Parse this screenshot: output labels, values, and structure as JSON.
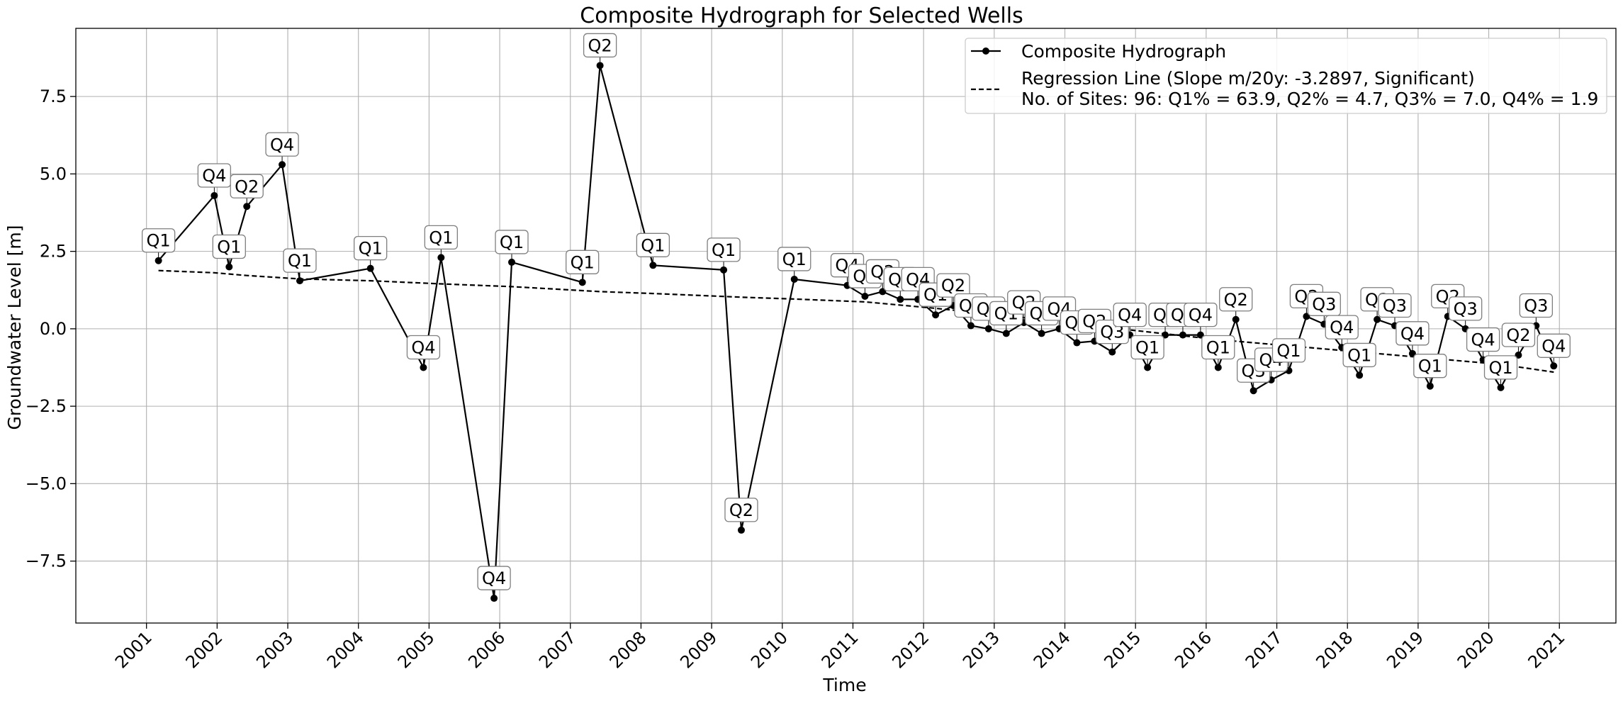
{
  "chart_data": {
    "type": "line",
    "title": "Composite Hydrograph for Selected Wells",
    "xlabel": "Time",
    "ylabel": "Groundwater Level [m]",
    "xlim": [
      2000.0,
      2021.8
    ],
    "ylim": [
      -9.5,
      9.7
    ],
    "grid": true,
    "legend_position": "top-right",
    "x_ticks": [
      "2001",
      "2002",
      "2003",
      "2004",
      "2005",
      "2006",
      "2007",
      "2008",
      "2009",
      "2010",
      "2011",
      "2012",
      "2013",
      "2014",
      "2015",
      "2016",
      "2017",
      "2018",
      "2019",
      "2020",
      "2021"
    ],
    "y_ticks": [
      {
        "value": 7.5,
        "label": "7.5"
      },
      {
        "value": 5.0,
        "label": "5.0"
      },
      {
        "value": 2.5,
        "label": "2.5"
      },
      {
        "value": 0.0,
        "label": "0.0"
      },
      {
        "value": -2.5,
        "label": "−2.5"
      },
      {
        "value": -5.0,
        "label": "−5.0"
      },
      {
        "value": -7.5,
        "label": "−7.5"
      }
    ],
    "series": [
      {
        "name": "Composite Hydrograph",
        "style": "solid-line-with-markers",
        "color": "#000000",
        "points": [
          {
            "x": 2001.17,
            "y": 2.2,
            "label": "Q1"
          },
          {
            "x": 2001.96,
            "y": 4.3,
            "label": "Q4"
          },
          {
            "x": 2002.17,
            "y": 2.0,
            "label": "Q1"
          },
          {
            "x": 2002.42,
            "y": 3.95,
            "label": "Q2"
          },
          {
            "x": 2002.92,
            "y": 5.3,
            "label": "Q4"
          },
          {
            "x": 2003.17,
            "y": 1.55,
            "label": "Q1"
          },
          {
            "x": 2004.17,
            "y": 1.95,
            "label": "Q1"
          },
          {
            "x": 2004.92,
            "y": -1.25,
            "label": "Q4"
          },
          {
            "x": 2005.17,
            "y": 2.3,
            "label": "Q1"
          },
          {
            "x": 2005.92,
            "y": -8.7,
            "label": "Q4"
          },
          {
            "x": 2006.17,
            "y": 2.15,
            "label": "Q1"
          },
          {
            "x": 2007.17,
            "y": 1.5,
            "label": "Q1"
          },
          {
            "x": 2007.42,
            "y": 8.5,
            "label": "Q2"
          },
          {
            "x": 2008.17,
            "y": 2.05,
            "label": "Q1"
          },
          {
            "x": 2009.17,
            "y": 1.9,
            "label": "Q1"
          },
          {
            "x": 2009.42,
            "y": -6.5,
            "label": "Q2"
          },
          {
            "x": 2010.17,
            "y": 1.6,
            "label": "Q1"
          },
          {
            "x": 2010.92,
            "y": 1.4,
            "label": "Q4"
          },
          {
            "x": 2011.17,
            "y": 1.05,
            "label": "Q1"
          },
          {
            "x": 2011.42,
            "y": 1.2,
            "label": "Q2"
          },
          {
            "x": 2011.67,
            "y": 0.95,
            "label": "Q3"
          },
          {
            "x": 2011.92,
            "y": 0.95,
            "label": "Q4"
          },
          {
            "x": 2012.17,
            "y": 0.45,
            "label": "Q1"
          },
          {
            "x": 2012.42,
            "y": 0.75,
            "label": "Q2"
          },
          {
            "x": 2012.67,
            "y": 0.1,
            "label": "Q3"
          },
          {
            "x": 2012.92,
            "y": 0.0,
            "label": "Q4"
          },
          {
            "x": 2013.17,
            "y": -0.15,
            "label": "Q1"
          },
          {
            "x": 2013.42,
            "y": 0.2,
            "label": "Q2"
          },
          {
            "x": 2013.67,
            "y": -0.15,
            "label": "Q3"
          },
          {
            "x": 2013.92,
            "y": 0.0,
            "label": "Q4"
          },
          {
            "x": 2014.17,
            "y": -0.45,
            "label": "Q1"
          },
          {
            "x": 2014.42,
            "y": -0.4,
            "label": "Q2"
          },
          {
            "x": 2014.67,
            "y": -0.75,
            "label": "Q3"
          },
          {
            "x": 2014.92,
            "y": -0.2,
            "label": "Q4"
          },
          {
            "x": 2015.17,
            "y": -1.25,
            "label": "Q1"
          },
          {
            "x": 2015.42,
            "y": -0.2,
            "label": "Q2"
          },
          {
            "x": 2015.67,
            "y": -0.2,
            "label": "Q3"
          },
          {
            "x": 2015.92,
            "y": -0.2,
            "label": "Q4"
          },
          {
            "x": 2016.17,
            "y": -1.25,
            "label": "Q1"
          },
          {
            "x": 2016.42,
            "y": 0.3,
            "label": "Q2"
          },
          {
            "x": 2016.67,
            "y": -2.0,
            "label": "Q3"
          },
          {
            "x": 2016.92,
            "y": -1.65,
            "label": "Q4"
          },
          {
            "x": 2017.17,
            "y": -1.35,
            "label": "Q1"
          },
          {
            "x": 2017.42,
            "y": 0.4,
            "label": "Q2"
          },
          {
            "x": 2017.67,
            "y": 0.15,
            "label": "Q3"
          },
          {
            "x": 2017.92,
            "y": -0.6,
            "label": "Q4"
          },
          {
            "x": 2018.17,
            "y": -1.5,
            "label": "Q1"
          },
          {
            "x": 2018.42,
            "y": 0.3,
            "label": "Q2"
          },
          {
            "x": 2018.67,
            "y": 0.1,
            "label": "Q3"
          },
          {
            "x": 2018.92,
            "y": -0.8,
            "label": "Q4"
          },
          {
            "x": 2019.17,
            "y": -1.85,
            "label": "Q1"
          },
          {
            "x": 2019.42,
            "y": 0.4,
            "label": "Q2"
          },
          {
            "x": 2019.67,
            "y": 0.0,
            "label": "Q3"
          },
          {
            "x": 2019.92,
            "y": -1.0,
            "label": "Q4"
          },
          {
            "x": 2020.17,
            "y": -1.9,
            "label": "Q1"
          },
          {
            "x": 2020.42,
            "y": -0.85,
            "label": "Q2"
          },
          {
            "x": 2020.67,
            "y": 0.1,
            "label": "Q3"
          },
          {
            "x": 2020.92,
            "y": -1.2,
            "label": "Q4"
          }
        ]
      },
      {
        "name": "Regression Line (Slope m/20y: -3.2897, Significant)",
        "name_line2": "No. of Sites: 96: Q1% = 63.9, Q2% = 4.7, Q3% = 7.0, Q4% = 1.9",
        "style": "dashed-line",
        "color": "#000000",
        "points": [
          {
            "x": 2001.17,
            "y": 1.88
          },
          {
            "x": 2001.96,
            "y": 1.81
          },
          {
            "x": 2002.42,
            "y": 1.72
          },
          {
            "x": 2003.17,
            "y": 1.61
          },
          {
            "x": 2004.17,
            "y": 1.55
          },
          {
            "x": 2005.17,
            "y": 1.45
          },
          {
            "x": 2006.17,
            "y": 1.36
          },
          {
            "x": 2007.42,
            "y": 1.2
          },
          {
            "x": 2008.17,
            "y": 1.14
          },
          {
            "x": 2009.42,
            "y": 1.02
          },
          {
            "x": 2010.17,
            "y": 0.96
          },
          {
            "x": 2011.17,
            "y": 0.87
          },
          {
            "x": 2012.17,
            "y": 0.66
          },
          {
            "x": 2013.17,
            "y": 0.43
          },
          {
            "x": 2014.17,
            "y": 0.15
          },
          {
            "x": 2015.17,
            "y": -0.1
          },
          {
            "x": 2016.17,
            "y": -0.35
          },
          {
            "x": 2017.17,
            "y": -0.55
          },
          {
            "x": 2018.17,
            "y": -0.75
          },
          {
            "x": 2019.17,
            "y": -0.95
          },
          {
            "x": 2020.17,
            "y": -1.15
          },
          {
            "x": 2020.92,
            "y": -1.4
          }
        ]
      }
    ]
  }
}
